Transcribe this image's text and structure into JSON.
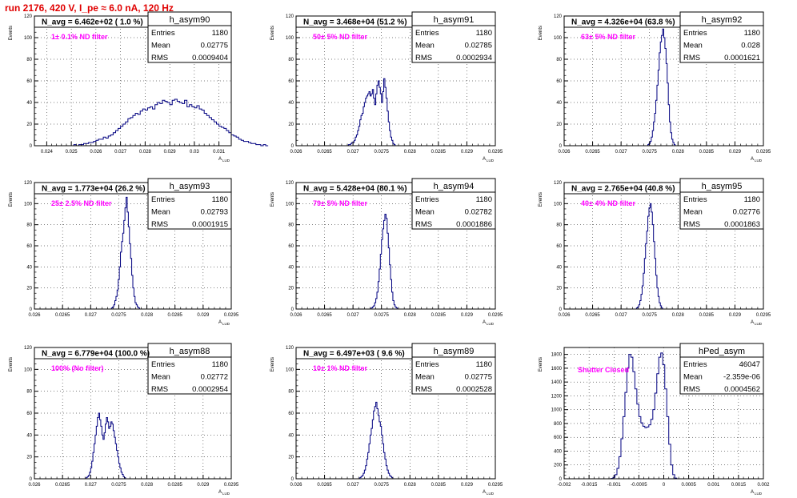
{
  "run_title": "run 2176,   420 V, I_pe ≈ 6.0 nA, 120 Hz",
  "colors": {
    "hist": "#000080",
    "annotation": "#ff00ff",
    "title": "#e00000"
  },
  "chart_data": [
    {
      "type": "histogram",
      "name": "h_asym90",
      "n_avg_label": "N_avg = 6.462e+02 ( 1.0 %)",
      "filter_label": "1± 0.1% ND filter",
      "stats": {
        "Entries": "1180",
        "Mean": "0.02775",
        "RMS": "0.0009404"
      },
      "xlabel": "A_LUD",
      "ylabel": "Events",
      "xlim": [
        0.0235,
        0.0315
      ],
      "ylim": [
        0,
        120
      ],
      "xticks": [
        0.024,
        0.025,
        0.026,
        0.027,
        0.028,
        0.029,
        0.03,
        0.031
      ],
      "xtick_labels": [
        "0.024",
        "0.025",
        "0.026",
        "0.027",
        "0.028",
        "0.029",
        "0.03",
        "0.031"
      ],
      "yticks": [
        0,
        20,
        40,
        60,
        80,
        100,
        120
      ],
      "bins": {
        "start": 0.025,
        "width": 0.0001,
        "values": [
          0,
          1,
          0,
          1,
          1,
          2,
          2,
          3,
          3,
          4,
          5,
          6,
          6,
          8,
          7,
          9,
          10,
          12,
          14,
          16,
          18,
          20,
          22,
          25,
          26,
          28,
          30,
          29,
          32,
          34,
          33,
          35,
          36,
          34,
          38,
          40,
          39,
          42,
          41,
          40,
          38,
          42,
          43,
          41,
          40,
          39,
          42,
          36,
          38,
          36,
          35,
          37,
          34,
          33,
          30,
          28,
          26,
          24,
          22,
          20,
          18,
          17,
          16,
          14,
          12,
          10,
          9,
          8,
          6,
          5,
          4,
          4,
          3,
          2,
          2,
          1,
          1,
          0,
          1,
          0
        ]
      }
    },
    {
      "type": "histogram",
      "name": "h_asym91",
      "n_avg_label": "N_avg = 3.468e+04 (51.2 %)",
      "filter_label": "50± 5% ND filter",
      "stats": {
        "Entries": "1180",
        "Mean": "0.02785",
        "RMS": "0.0002934"
      },
      "xlabel": "A_LUD",
      "ylabel": "Events",
      "xlim": [
        0.026,
        0.0295
      ],
      "ylim": [
        0,
        120
      ],
      "xticks": [
        0.026,
        0.0265,
        0.027,
        0.0275,
        0.028,
        0.0285,
        0.029,
        0.0295
      ],
      "xtick_labels": [
        "0.026",
        "0.0265",
        "0.027",
        "0.0275",
        "0.028",
        "0.0285",
        "0.029",
        "0.0295"
      ],
      "yticks": [
        0,
        20,
        40,
        60,
        80,
        100,
        120
      ],
      "bins": {
        "start": 0.0269,
        "width": 2e-05,
        "values": [
          0,
          1,
          1,
          2,
          3,
          3,
          5,
          8,
          10,
          14,
          18,
          24,
          28,
          30,
          36,
          40,
          44,
          46,
          48,
          50,
          46,
          48,
          52,
          44,
          38,
          48,
          56,
          60,
          54,
          48,
          40,
          50,
          62,
          54,
          44,
          32,
          22,
          14,
          8,
          5,
          2,
          1,
          0
        ]
      }
    },
    {
      "type": "histogram",
      "name": "h_asym92",
      "n_avg_label": "N_avg = 4.326e+04 (63.8 %)",
      "filter_label": "63± 5% ND filter",
      "stats": {
        "Entries": "1180",
        "Mean": "0.028",
        "RMS": "0.0001621"
      },
      "xlabel": "A_LUD",
      "ylabel": "Events",
      "xlim": [
        0.026,
        0.0295
      ],
      "ylim": [
        0,
        120
      ],
      "xticks": [
        0.026,
        0.0265,
        0.027,
        0.0275,
        0.028,
        0.0285,
        0.029,
        0.0295
      ],
      "xtick_labels": [
        "0.026",
        "0.0265",
        "0.027",
        "0.0275",
        "0.028",
        "0.0285",
        "0.029",
        "0.0295"
      ],
      "yticks": [
        0,
        20,
        40,
        60,
        80,
        100,
        120
      ],
      "bins": {
        "start": 0.02745,
        "width": 2e-05,
        "values": [
          0,
          1,
          2,
          4,
          8,
          14,
          22,
          30,
          42,
          56,
          70,
          86,
          96,
          102,
          108,
          100,
          90,
          76,
          58,
          38,
          22,
          12,
          6,
          3,
          1,
          0
        ]
      }
    },
    {
      "type": "histogram",
      "name": "h_asym93",
      "n_avg_label": "N_avg = 1.773e+04 (26.2 %)",
      "filter_label": "25± 2.5% ND filter",
      "stats": {
        "Entries": "1180",
        "Mean": "0.02793",
        "RMS": "0.0001915"
      },
      "xlabel": "A_LUD",
      "ylabel": "Events",
      "xlim": [
        0.026,
        0.0295
      ],
      "ylim": [
        0,
        120
      ],
      "xticks": [
        0.026,
        0.0265,
        0.027,
        0.0275,
        0.028,
        0.0285,
        0.029,
        0.0295
      ],
      "xtick_labels": [
        "0.026",
        "0.0265",
        "0.027",
        "0.0275",
        "0.028",
        "0.0285",
        "0.029",
        "0.0295"
      ],
      "yticks": [
        0,
        20,
        40,
        60,
        80,
        100,
        120
      ],
      "bins": {
        "start": 0.02735,
        "width": 2e-05,
        "values": [
          0,
          1,
          2,
          4,
          8,
          12,
          18,
          28,
          40,
          54,
          64,
          72,
          84,
          96,
          106,
          92,
          78,
          62,
          48,
          32,
          20,
          12,
          6,
          4,
          2,
          1,
          0
        ]
      }
    },
    {
      "type": "histogram",
      "name": "h_asym94",
      "n_avg_label": "N_avg = 5.428e+04 (80.1 %)",
      "filter_label": "79± 5% ND filter",
      "stats": {
        "Entries": "1180",
        "Mean": "0.02782",
        "RMS": "0.0001886"
      },
      "xlabel": "A_LUD",
      "ylabel": "Events",
      "xlim": [
        0.026,
        0.0295
      ],
      "ylim": [
        0,
        120
      ],
      "xticks": [
        0.026,
        0.0265,
        0.027,
        0.0275,
        0.028,
        0.0285,
        0.029,
        0.0295
      ],
      "xtick_labels": [
        "0.026",
        "0.0265",
        "0.027",
        "0.0275",
        "0.028",
        "0.0285",
        "0.029",
        "0.0295"
      ],
      "yticks": [
        0,
        20,
        40,
        60,
        80,
        100,
        120
      ],
      "bins": {
        "start": 0.0273,
        "width": 2e-05,
        "values": [
          0,
          1,
          2,
          3,
          6,
          10,
          16,
          26,
          38,
          52,
          66,
          76,
          84,
          90,
          86,
          72,
          58,
          42,
          28,
          16,
          8,
          4,
          2,
          1,
          0
        ]
      }
    },
    {
      "type": "histogram",
      "name": "h_asym95",
      "n_avg_label": "N_avg = 2.765e+04 (40.8 %)",
      "filter_label": "40± 4% ND filter",
      "stats": {
        "Entries": "1180",
        "Mean": "0.02776",
        "RMS": "0.0001863"
      },
      "xlabel": "A_LUD",
      "ylabel": "Events",
      "xlim": [
        0.026,
        0.0295
      ],
      "ylim": [
        0,
        120
      ],
      "xticks": [
        0.026,
        0.0265,
        0.027,
        0.0275,
        0.028,
        0.0285,
        0.029,
        0.0295
      ],
      "xtick_labels": [
        "0.026",
        "0.0265",
        "0.027",
        "0.0275",
        "0.028",
        "0.0285",
        "0.029",
        "0.0295"
      ],
      "yticks": [
        0,
        20,
        40,
        60,
        80,
        100,
        120
      ],
      "bins": {
        "start": 0.02725,
        "width": 2e-05,
        "values": [
          0,
          1,
          2,
          4,
          8,
          14,
          22,
          34,
          48,
          62,
          74,
          88,
          96,
          100,
          92,
          80,
          64,
          48,
          32,
          20,
          12,
          6,
          3,
          1,
          0
        ]
      }
    },
    {
      "type": "histogram",
      "name": "h_asym88",
      "n_avg_label": "N_avg = 6.779e+04 (100.0 %)",
      "filter_label": "100% (No filter)",
      "stats": {
        "Entries": "1180",
        "Mean": "0.02772",
        "RMS": "0.0002954"
      },
      "xlabel": "A_LUD",
      "ylabel": "Events",
      "xlim": [
        0.026,
        0.0295
      ],
      "ylim": [
        0,
        120
      ],
      "xticks": [
        0.026,
        0.0265,
        0.027,
        0.0275,
        0.028,
        0.0285,
        0.029,
        0.0295
      ],
      "xtick_labels": [
        "0.026",
        "0.0265",
        "0.027",
        "0.0275",
        "0.028",
        "0.0285",
        "0.029",
        "0.0295"
      ],
      "yticks": [
        0,
        20,
        40,
        60,
        80,
        100,
        120
      ],
      "bins": {
        "start": 0.0269,
        "width": 2e-05,
        "values": [
          0,
          1,
          2,
          3,
          6,
          10,
          16,
          24,
          32,
          40,
          48,
          56,
          60,
          54,
          48,
          40,
          36,
          42,
          50,
          56,
          52,
          46,
          48,
          52,
          50,
          44,
          38,
          32,
          26,
          20,
          14,
          10,
          6,
          4,
          2,
          1,
          0
        ]
      }
    },
    {
      "type": "histogram",
      "name": "h_asym89",
      "n_avg_label": "N_avg = 6.497e+03 ( 9.6 %)",
      "filter_label": "10± 1% ND filter",
      "stats": {
        "Entries": "1180",
        "Mean": "0.02775",
        "RMS": "0.0002528"
      },
      "xlabel": "A_LUD",
      "ylabel": "Events",
      "xlim": [
        0.026,
        0.0295
      ],
      "ylim": [
        0,
        120
      ],
      "xticks": [
        0.026,
        0.0265,
        0.027,
        0.0275,
        0.028,
        0.0285,
        0.029,
        0.0295
      ],
      "xtick_labels": [
        "0.026",
        "0.0265",
        "0.027",
        "0.0275",
        "0.028",
        "0.0285",
        "0.029",
        "0.0295"
      ],
      "yticks": [
        0,
        20,
        40,
        60,
        80,
        100,
        120
      ],
      "bins": {
        "start": 0.0271,
        "width": 2e-05,
        "values": [
          0,
          1,
          2,
          3,
          5,
          8,
          12,
          18,
          24,
          32,
          40,
          46,
          54,
          62,
          66,
          70,
          64,
          58,
          52,
          48,
          40,
          32,
          24,
          18,
          12,
          8,
          5,
          3,
          2,
          1,
          0
        ]
      }
    },
    {
      "type": "histogram",
      "name": "hPed_asym",
      "n_avg_label": "",
      "filter_label": "Shutter Closed",
      "stats": {
        "Entries": "46047",
        "Mean": "-2.359e-06",
        "RMS": "0.0004562"
      },
      "xlabel": "A_LUD",
      "ylabel": "Events",
      "xlim": [
        -0.002,
        0.002
      ],
      "ylim": [
        0,
        1900
      ],
      "xticks": [
        -0.002,
        -0.0015,
        -0.001,
        -0.0005,
        0,
        0.0005,
        0.001,
        0.0015,
        0.002
      ],
      "xtick_labels": [
        "-0.002",
        "-0.0015",
        "-0.001",
        "-0.0005",
        "0",
        "0.0005",
        "0.001",
        "0.0015",
        "0.002"
      ],
      "yticks": [
        0,
        200,
        400,
        600,
        800,
        1000,
        1200,
        1400,
        1600,
        1800
      ],
      "bins": {
        "start": -0.00106,
        "width": 4e-05,
        "values": [
          5,
          20,
          60,
          150,
          320,
          580,
          900,
          1250,
          1600,
          1800,
          1760,
          1550,
          1300,
          1080,
          900,
          810,
          760,
          740,
          750,
          780,
          860,
          1000,
          1240,
          1520,
          1760,
          1820,
          1650,
          1300,
          900,
          500,
          200,
          60,
          10
        ]
      }
    }
  ]
}
